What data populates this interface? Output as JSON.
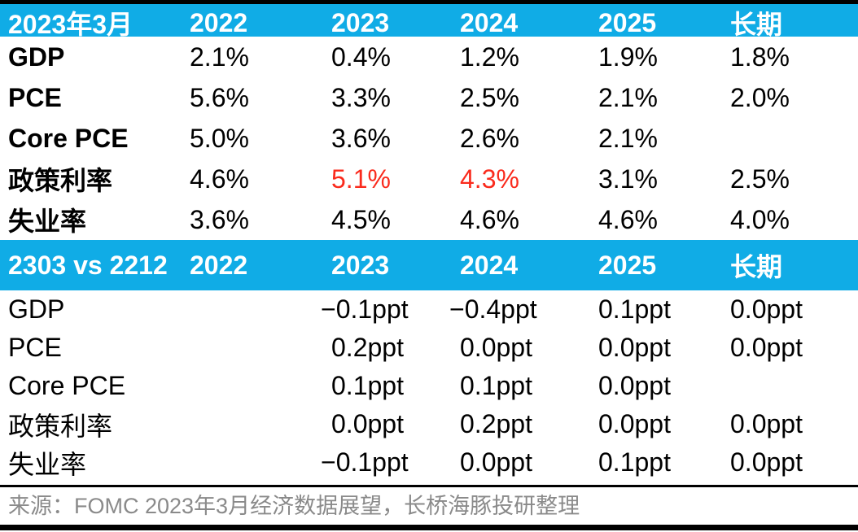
{
  "colors": {
    "accent": "#10ACE6",
    "highlight_red": "#FA2B1D",
    "footer_gray": "#8A8A8A",
    "header_text": "#FFFFFF",
    "body_text": "#000000"
  },
  "chart_data": [
    {
      "type": "table",
      "title": "2023年3月",
      "columns": [
        "2022",
        "2023",
        "2024",
        "2025",
        "长期"
      ],
      "rows": [
        {
          "label": "GDP",
          "values": [
            "2.1%",
            "0.4%",
            "1.2%",
            "1.9%",
            "1.8%"
          ]
        },
        {
          "label": "PCE",
          "values": [
            "5.6%",
            "3.3%",
            "2.5%",
            "2.1%",
            "2.0%"
          ]
        },
        {
          "label": "Core PCE",
          "values": [
            "5.0%",
            "3.6%",
            "2.6%",
            "2.1%",
            ""
          ]
        },
        {
          "label": "政策利率",
          "values": [
            "4.6%",
            "5.1%",
            "4.3%",
            "3.1%",
            "2.5%"
          ],
          "red_value_indexes": [
            1,
            2
          ]
        },
        {
          "label": "失业率",
          "values": [
            "3.6%",
            "4.5%",
            "4.6%",
            "4.6%",
            "4.0%"
          ]
        }
      ]
    },
    {
      "type": "table",
      "title": "2303 vs 2212",
      "columns": [
        "2022",
        "2023",
        "2024",
        "2025",
        "长期"
      ],
      "rows": [
        {
          "label": "GDP",
          "values": [
            "",
            "−0.1ppt",
            "−0.4ppt",
            "0.1ppt",
            "0.0ppt"
          ]
        },
        {
          "label": "PCE",
          "values": [
            "",
            "0.2ppt",
            "0.0ppt",
            "0.0ppt",
            "0.0ppt"
          ]
        },
        {
          "label": "Core PCE",
          "values": [
            "",
            "0.1ppt",
            "0.1ppt",
            "0.0ppt",
            ""
          ]
        },
        {
          "label": "政策利率",
          "values": [
            "",
            "0.0ppt",
            "0.2ppt",
            "0.0ppt",
            "0.0ppt"
          ]
        },
        {
          "label": "失业率",
          "values": [
            "",
            "−0.1ppt",
            "0.0ppt",
            "0.1ppt",
            "0.0ppt"
          ]
        }
      ]
    }
  ],
  "footer": {
    "source_text": "来源：FOMC 2023年3月经济数据展望，长桥海豚投研整理"
  }
}
